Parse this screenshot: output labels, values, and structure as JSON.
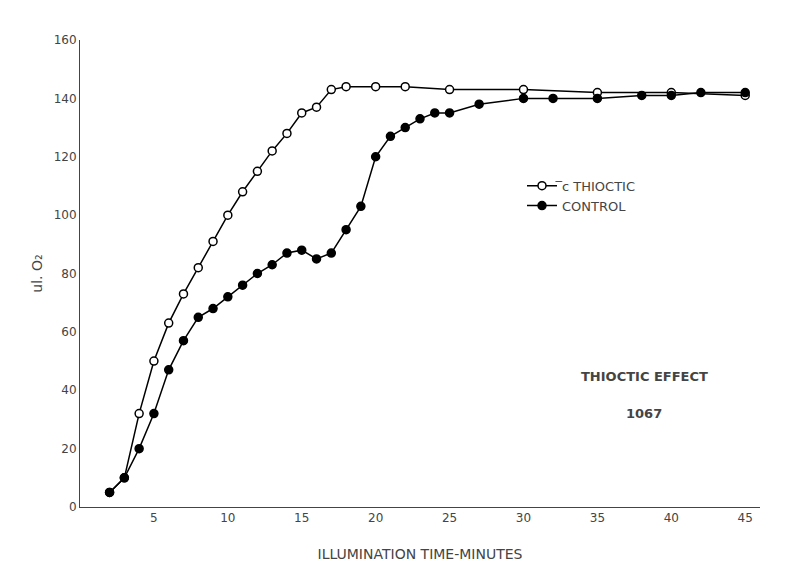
{
  "chart_data": {
    "type": "line",
    "xlabel": "ILLUMINATION TIME-MINUTES",
    "ylabel": "ul. O₂",
    "series": [
      {
        "name": "̅c THIOCTIC",
        "color": "#000000",
        "marker": "circle-open",
        "x": [
          2,
          3,
          4,
          5,
          6,
          7,
          8,
          9,
          10,
          11,
          12,
          13,
          14,
          15,
          16,
          17,
          18,
          20,
          22,
          25,
          30,
          35,
          40,
          45
        ],
        "values": [
          5,
          10,
          32,
          50,
          63,
          73,
          82,
          91,
          100,
          108,
          115,
          122,
          128,
          135,
          137,
          143,
          144,
          144,
          144,
          143,
          143,
          142,
          142,
          141
        ]
      },
      {
        "name": "CONTROL",
        "color": "#000000",
        "marker": "circle",
        "x": [
          2,
          3,
          4,
          5,
          6,
          7,
          8,
          9,
          10,
          11,
          12,
          13,
          14,
          15,
          16,
          17,
          18,
          19,
          20,
          21,
          22,
          23,
          24,
          25,
          27,
          30,
          32,
          35,
          38,
          40,
          42,
          45
        ],
        "values": [
          5,
          10,
          20,
          32,
          47,
          57,
          65,
          68,
          72,
          76,
          80,
          83,
          87,
          88,
          85,
          87,
          95,
          103,
          120,
          127,
          130,
          133,
          135,
          135,
          138,
          140,
          140,
          140,
          141,
          141,
          142,
          142
        ]
      }
    ],
    "annotations": [
      "THIOCTIC EFFECT",
      "1067"
    ],
    "xlim": [
      0,
      46
    ],
    "xticks": [
      5,
      10,
      15,
      20,
      25,
      30,
      35,
      40,
      45
    ],
    "ylim": [
      0,
      160
    ],
    "yticks": [
      0,
      20,
      40,
      60,
      80,
      100,
      120,
      140,
      160
    ],
    "grid": false,
    "legend": "right"
  }
}
